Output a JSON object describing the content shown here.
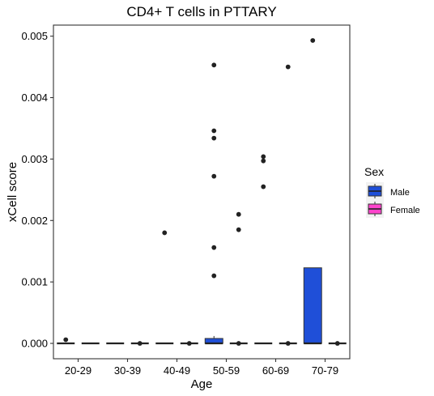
{
  "chart_data": {
    "type": "box",
    "title": "CD4+ T cells in PTTARY",
    "xlabel": "Age",
    "ylabel": "xCell score",
    "categories": [
      "20-29",
      "30-39",
      "40-49",
      "50-59",
      "60-69",
      "70-79"
    ],
    "ylim": [
      -0.00025,
      0.00518
    ],
    "yticks": [
      0.0,
      0.001,
      0.002,
      0.003,
      0.004,
      0.005
    ],
    "ytick_labels": [
      "0.000",
      "0.001",
      "0.002",
      "0.003",
      "0.004",
      "0.005"
    ],
    "grid": false,
    "legend": {
      "title": "Sex",
      "position": "right",
      "entries": [
        {
          "name": "Male",
          "color": "#1f4fd8"
        },
        {
          "name": "Female",
          "color": "#ff44cc"
        }
      ]
    },
    "series": [
      {
        "name": "Male",
        "color": "#1f4fd8",
        "boxes": [
          {
            "q1": 0,
            "median": 0,
            "q3": 0,
            "whisker_low": 0,
            "whisker_high": 0
          },
          {
            "q1": 0,
            "median": 0,
            "q3": 0,
            "whisker_low": 0,
            "whisker_high": 0
          },
          {
            "q1": 0,
            "median": 0,
            "q3": 0,
            "whisker_low": 0,
            "whisker_high": 0
          },
          {
            "q1": 0,
            "median": 0,
            "q3": 8e-05,
            "whisker_low": 0,
            "whisker_high": 0.00012
          },
          {
            "q1": 0,
            "median": 0,
            "q3": 0,
            "whisker_low": 0,
            "whisker_high": 0
          },
          {
            "q1": 0,
            "median": 0,
            "q3": 0.00123,
            "whisker_low": 0,
            "whisker_high": 0.00123
          }
        ],
        "outliers": [
          [
            6e-05
          ],
          [],
          [
            0.0018
          ],
          [
            0.00453,
            0.00346,
            0.00334,
            0.00272,
            0.00156,
            0.0011
          ],
          [
            0.00304,
            0.00297,
            0.00255
          ],
          [
            0.00493
          ]
        ]
      },
      {
        "name": "Female",
        "color": "#ff44cc",
        "boxes": [
          {
            "q1": 0,
            "median": 0,
            "q3": 0,
            "whisker_low": 0,
            "whisker_high": 0
          },
          {
            "q1": 0,
            "median": 0,
            "q3": 0,
            "whisker_low": 0,
            "whisker_high": 0
          },
          {
            "q1": 0,
            "median": 0,
            "q3": 0,
            "whisker_low": 0,
            "whisker_high": 0
          },
          {
            "q1": 0,
            "median": 0,
            "q3": 0,
            "whisker_low": 0,
            "whisker_high": 0
          },
          {
            "q1": 0,
            "median": 0,
            "q3": 0,
            "whisker_low": 0,
            "whisker_high": 0
          },
          {
            "q1": 0,
            "median": 0,
            "q3": 0,
            "whisker_low": 0,
            "whisker_high": 0
          }
        ],
        "outliers": [
          [],
          [
            0
          ],
          [
            0
          ],
          [
            0.0021,
            0.00185,
            0
          ],
          [
            0.0045,
            0
          ],
          [
            0
          ]
        ]
      }
    ]
  }
}
